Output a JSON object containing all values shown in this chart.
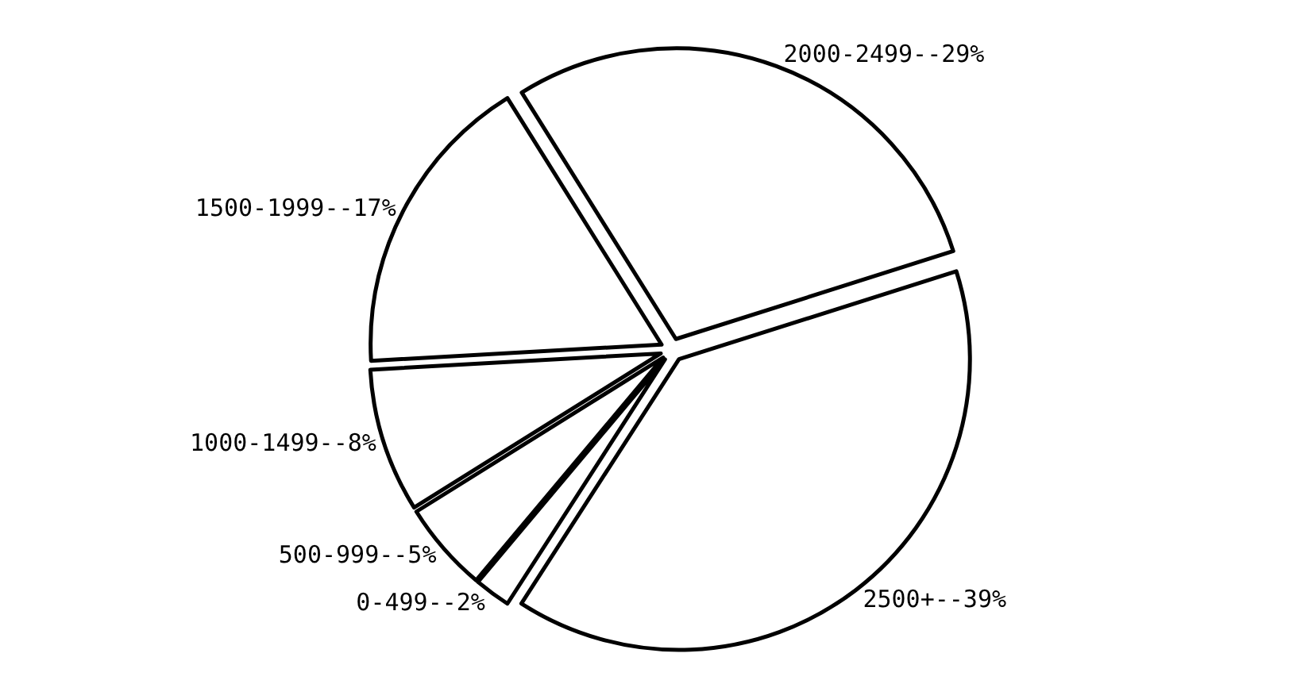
{
  "chart_data": {
    "type": "pie",
    "categories": [
      "2000-2499--29%",
      "2500+--39%",
      "0-499--2%",
      "500-999--5%",
      "1000-1499--8%",
      "1500-1999--17%"
    ],
    "values": [
      29,
      39,
      2,
      5,
      8,
      17
    ],
    "colors": [
      "#ffffff",
      "#ffffff",
      "#ffffff",
      "#ffffff",
      "#ffffff",
      "#ffffff"
    ],
    "legend": false
  }
}
